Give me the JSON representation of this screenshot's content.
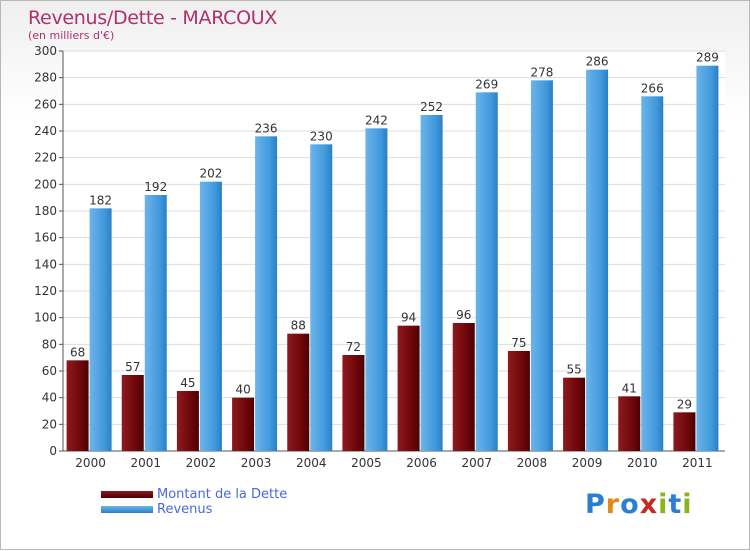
{
  "title": "Revenus/Dette - MARCOUX",
  "subtitle": "(en milliers d'€)",
  "logo": {
    "letters": [
      "P",
      "r",
      "o",
      "x",
      "i",
      "t",
      "i"
    ],
    "colors": [
      "#2a7fd4",
      "#e08a1a",
      "#2a7fd4",
      "#c8281e",
      "#86b51c",
      "#2a7fd4",
      "#86b51c"
    ]
  },
  "colors": {
    "debt": "#7a0c10",
    "revenue": "#4aa0e0",
    "tick_label": "#333333",
    "value_label": "#333333",
    "grid": "#dddddd"
  },
  "chart_data": {
    "type": "bar",
    "title": "Revenus/Dette - MARCOUX",
    "ylabel": "(en milliers d'€)",
    "xlabel": "",
    "ylim": [
      0,
      300
    ],
    "ytick_step": 20,
    "grid": true,
    "legend_position": "bottom-left",
    "categories": [
      "2000",
      "2001",
      "2002",
      "2003",
      "2004",
      "2005",
      "2006",
      "2007",
      "2008",
      "2009",
      "2010",
      "2011"
    ],
    "series": [
      {
        "name": "Montant de la Dette",
        "key": "debt",
        "values": [
          68,
          57,
          45,
          40,
          88,
          72,
          94,
          96,
          75,
          55,
          41,
          29
        ]
      },
      {
        "name": "Revenus",
        "key": "revenue",
        "values": [
          182,
          192,
          202,
          236,
          230,
          242,
          252,
          269,
          278,
          286,
          266,
          289
        ]
      }
    ]
  }
}
